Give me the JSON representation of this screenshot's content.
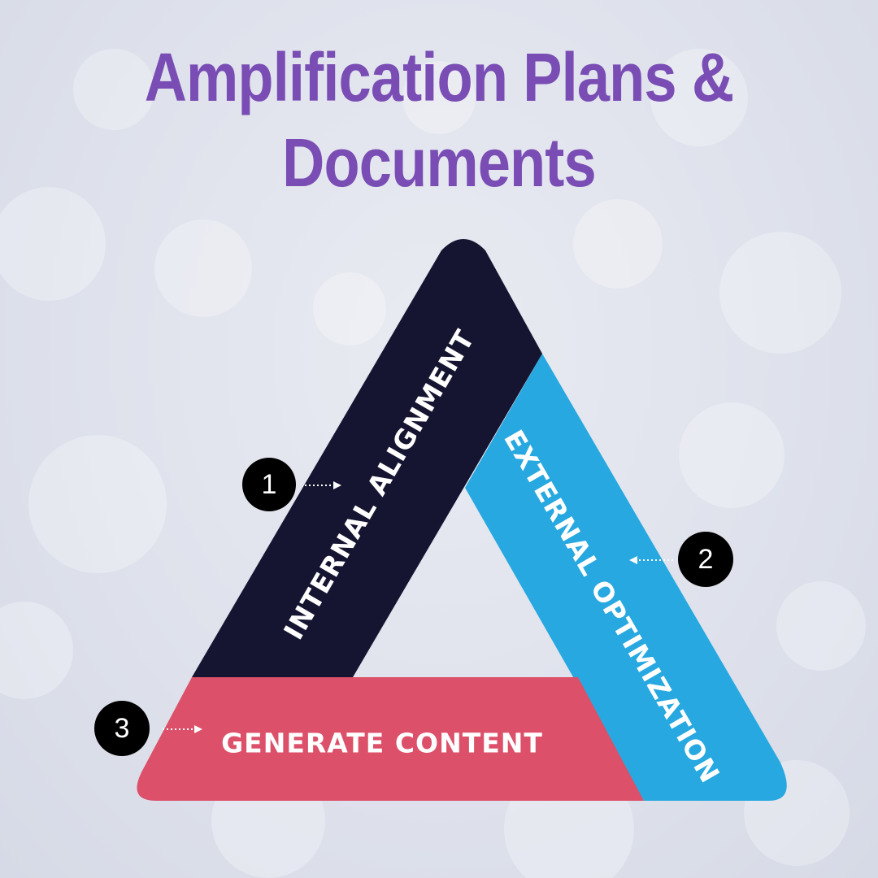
{
  "title": {
    "line1": "Amplification Plans &",
    "line2": "Documents"
  },
  "segments": [
    {
      "number": "1",
      "label": "INTERNAL ALIGNMENT",
      "color": "#151532"
    },
    {
      "number": "2",
      "label": "EXTERNAL OPTIMIZATION",
      "color": "#27a8e0"
    },
    {
      "number": "3",
      "label": "GENERATE CONTENT",
      "color": "#dc5069"
    }
  ],
  "colors": {
    "title": "#7a4db5",
    "marker": "#000000",
    "label_text": "#ffffff"
  }
}
